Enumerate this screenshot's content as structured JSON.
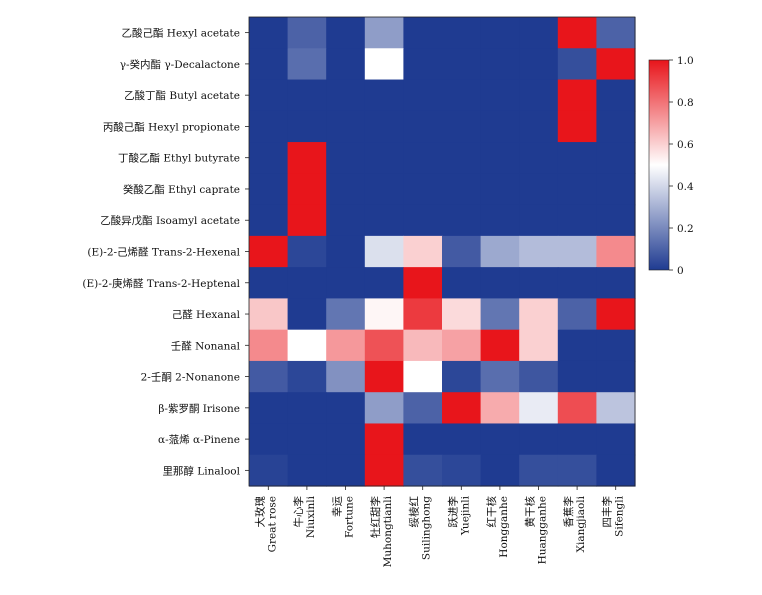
{
  "chart_data": {
    "type": "heatmap",
    "rows": [
      "乙酸己酯 Hexyl acetate",
      "γ-癸内酯 γ-Decalactone",
      "乙酸丁酯 Butyl acetate",
      "丙酸己酯 Hexyl propionate",
      "丁酸乙酯 Ethyl butyrate",
      "癸酸乙酯 Ethyl caprate",
      "乙酸异戊酯 Isoamyl acetate",
      "(E)-2-己烯醛 Trans-2-Hexenal",
      "(E)-2-庚烯醛 Trans-2-Heptenal",
      "己醛 Hexanal",
      "壬醛 Nonanal",
      "2-壬酮 2-Nonanone",
      "β-紫罗酮 Irisone",
      "α-蒎烯 α-Pinene",
      "里那醇 Linalool"
    ],
    "columns": [
      "大玫瑰 Great rose",
      "牛心李 Niuxinli",
      "幸运 Fortune",
      "牡红甜李 Muhongtianli",
      "绥棱红 Suilinghong",
      "跃进李 Yuejinli",
      "红干核 Hongganhe",
      "黄干核 Huangganhe",
      "香蕉李 Xiangjiaoli",
      "四丰李 Sifengli"
    ],
    "values": [
      [
        0.0,
        0.1,
        0.0,
        0.25,
        0.0,
        0.0,
        0.0,
        0.0,
        1.0,
        0.1
      ],
      [
        0.0,
        0.13,
        0.0,
        0.5,
        0.0,
        0.0,
        0.0,
        0.0,
        0.05,
        1.0
      ],
      [
        0.0,
        0.0,
        0.0,
        0.0,
        0.0,
        0.0,
        0.0,
        0.0,
        1.0,
        0.0
      ],
      [
        0.0,
        0.0,
        0.0,
        0.0,
        0.0,
        0.0,
        0.0,
        0.0,
        1.0,
        0.0
      ],
      [
        0.0,
        1.0,
        0.0,
        0.0,
        0.0,
        0.0,
        0.0,
        0.0,
        0.0,
        0.0
      ],
      [
        0.0,
        1.0,
        0.0,
        0.0,
        0.0,
        0.0,
        0.0,
        0.0,
        0.0,
        0.0
      ],
      [
        0.0,
        1.0,
        0.0,
        0.0,
        0.0,
        0.0,
        0.0,
        0.0,
        0.0,
        0.0
      ],
      [
        1.0,
        0.03,
        0.0,
        0.42,
        0.6,
        0.08,
        0.28,
        0.33,
        0.33,
        0.75
      ],
      [
        0.0,
        0.0,
        0.0,
        0.0,
        1.0,
        0.0,
        0.0,
        0.0,
        0.0,
        0.0
      ],
      [
        0.62,
        0.0,
        0.15,
        0.52,
        0.92,
        0.58,
        0.15,
        0.6,
        0.1,
        1.0
      ],
      [
        0.75,
        0.5,
        0.72,
        0.87,
        0.65,
        0.7,
        1.0,
        0.6,
        0.0,
        0.0
      ],
      [
        0.08,
        0.03,
        0.22,
        1.0,
        0.5,
        0.03,
        0.13,
        0.07,
        0.0,
        0.0
      ],
      [
        0.0,
        0.0,
        0.0,
        0.25,
        0.1,
        1.0,
        0.68,
        0.45,
        0.88,
        0.35
      ],
      [
        0.0,
        0.0,
        0.0,
        1.0,
        0.0,
        0.0,
        0.0,
        0.0,
        0.0,
        0.0
      ],
      [
        0.02,
        0.0,
        0.0,
        1.0,
        0.05,
        0.03,
        0.0,
        0.05,
        0.05,
        0.0
      ]
    ],
    "colorbar": {
      "min": 0,
      "max": 1.0,
      "ticks": [
        "0",
        "0.2",
        "0.4",
        "0.6",
        "0.8",
        "1.0"
      ],
      "colors": [
        "#1f3b91",
        "#ffffff",
        "#e8151b"
      ]
    }
  }
}
